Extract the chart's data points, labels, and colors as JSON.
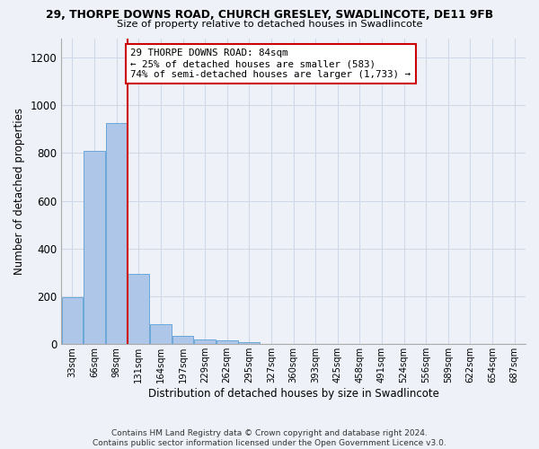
{
  "title1": "29, THORPE DOWNS ROAD, CHURCH GRESLEY, SWADLINCOTE, DE11 9FB",
  "title2": "Size of property relative to detached houses in Swadlincote",
  "xlabel": "Distribution of detached houses by size in Swadlincote",
  "ylabel": "Number of detached properties",
  "footnote": "Contains HM Land Registry data © Crown copyright and database right 2024.\nContains public sector information licensed under the Open Government Licence v3.0.",
  "bin_labels": [
    "33sqm",
    "66sqm",
    "98sqm",
    "131sqm",
    "164sqm",
    "197sqm",
    "229sqm",
    "262sqm",
    "295sqm",
    "327sqm",
    "360sqm",
    "393sqm",
    "425sqm",
    "458sqm",
    "491sqm",
    "524sqm",
    "556sqm",
    "589sqm",
    "622sqm",
    "654sqm",
    "687sqm"
  ],
  "bar_values": [
    195,
    810,
    925,
    295,
    85,
    35,
    20,
    15,
    10,
    0,
    0,
    0,
    0,
    0,
    0,
    0,
    0,
    0,
    0,
    0,
    0
  ],
  "bar_color": "#aec6e8",
  "bar_edge_color": "#5a9fd4",
  "grid_color": "#d0d8e8",
  "vline_x_index": 2,
  "vline_color": "#cc0000",
  "annotation_text": "29 THORPE DOWNS ROAD: 84sqm\n← 25% of detached houses are smaller (583)\n74% of semi-detached houses are larger (1,733) →",
  "annotation_box_color": "white",
  "annotation_box_edge": "#cc0000",
  "ylim": [
    0,
    1280
  ],
  "yticks": [
    0,
    200,
    400,
    600,
    800,
    1000,
    1200
  ],
  "background_color": "#eef2f8"
}
